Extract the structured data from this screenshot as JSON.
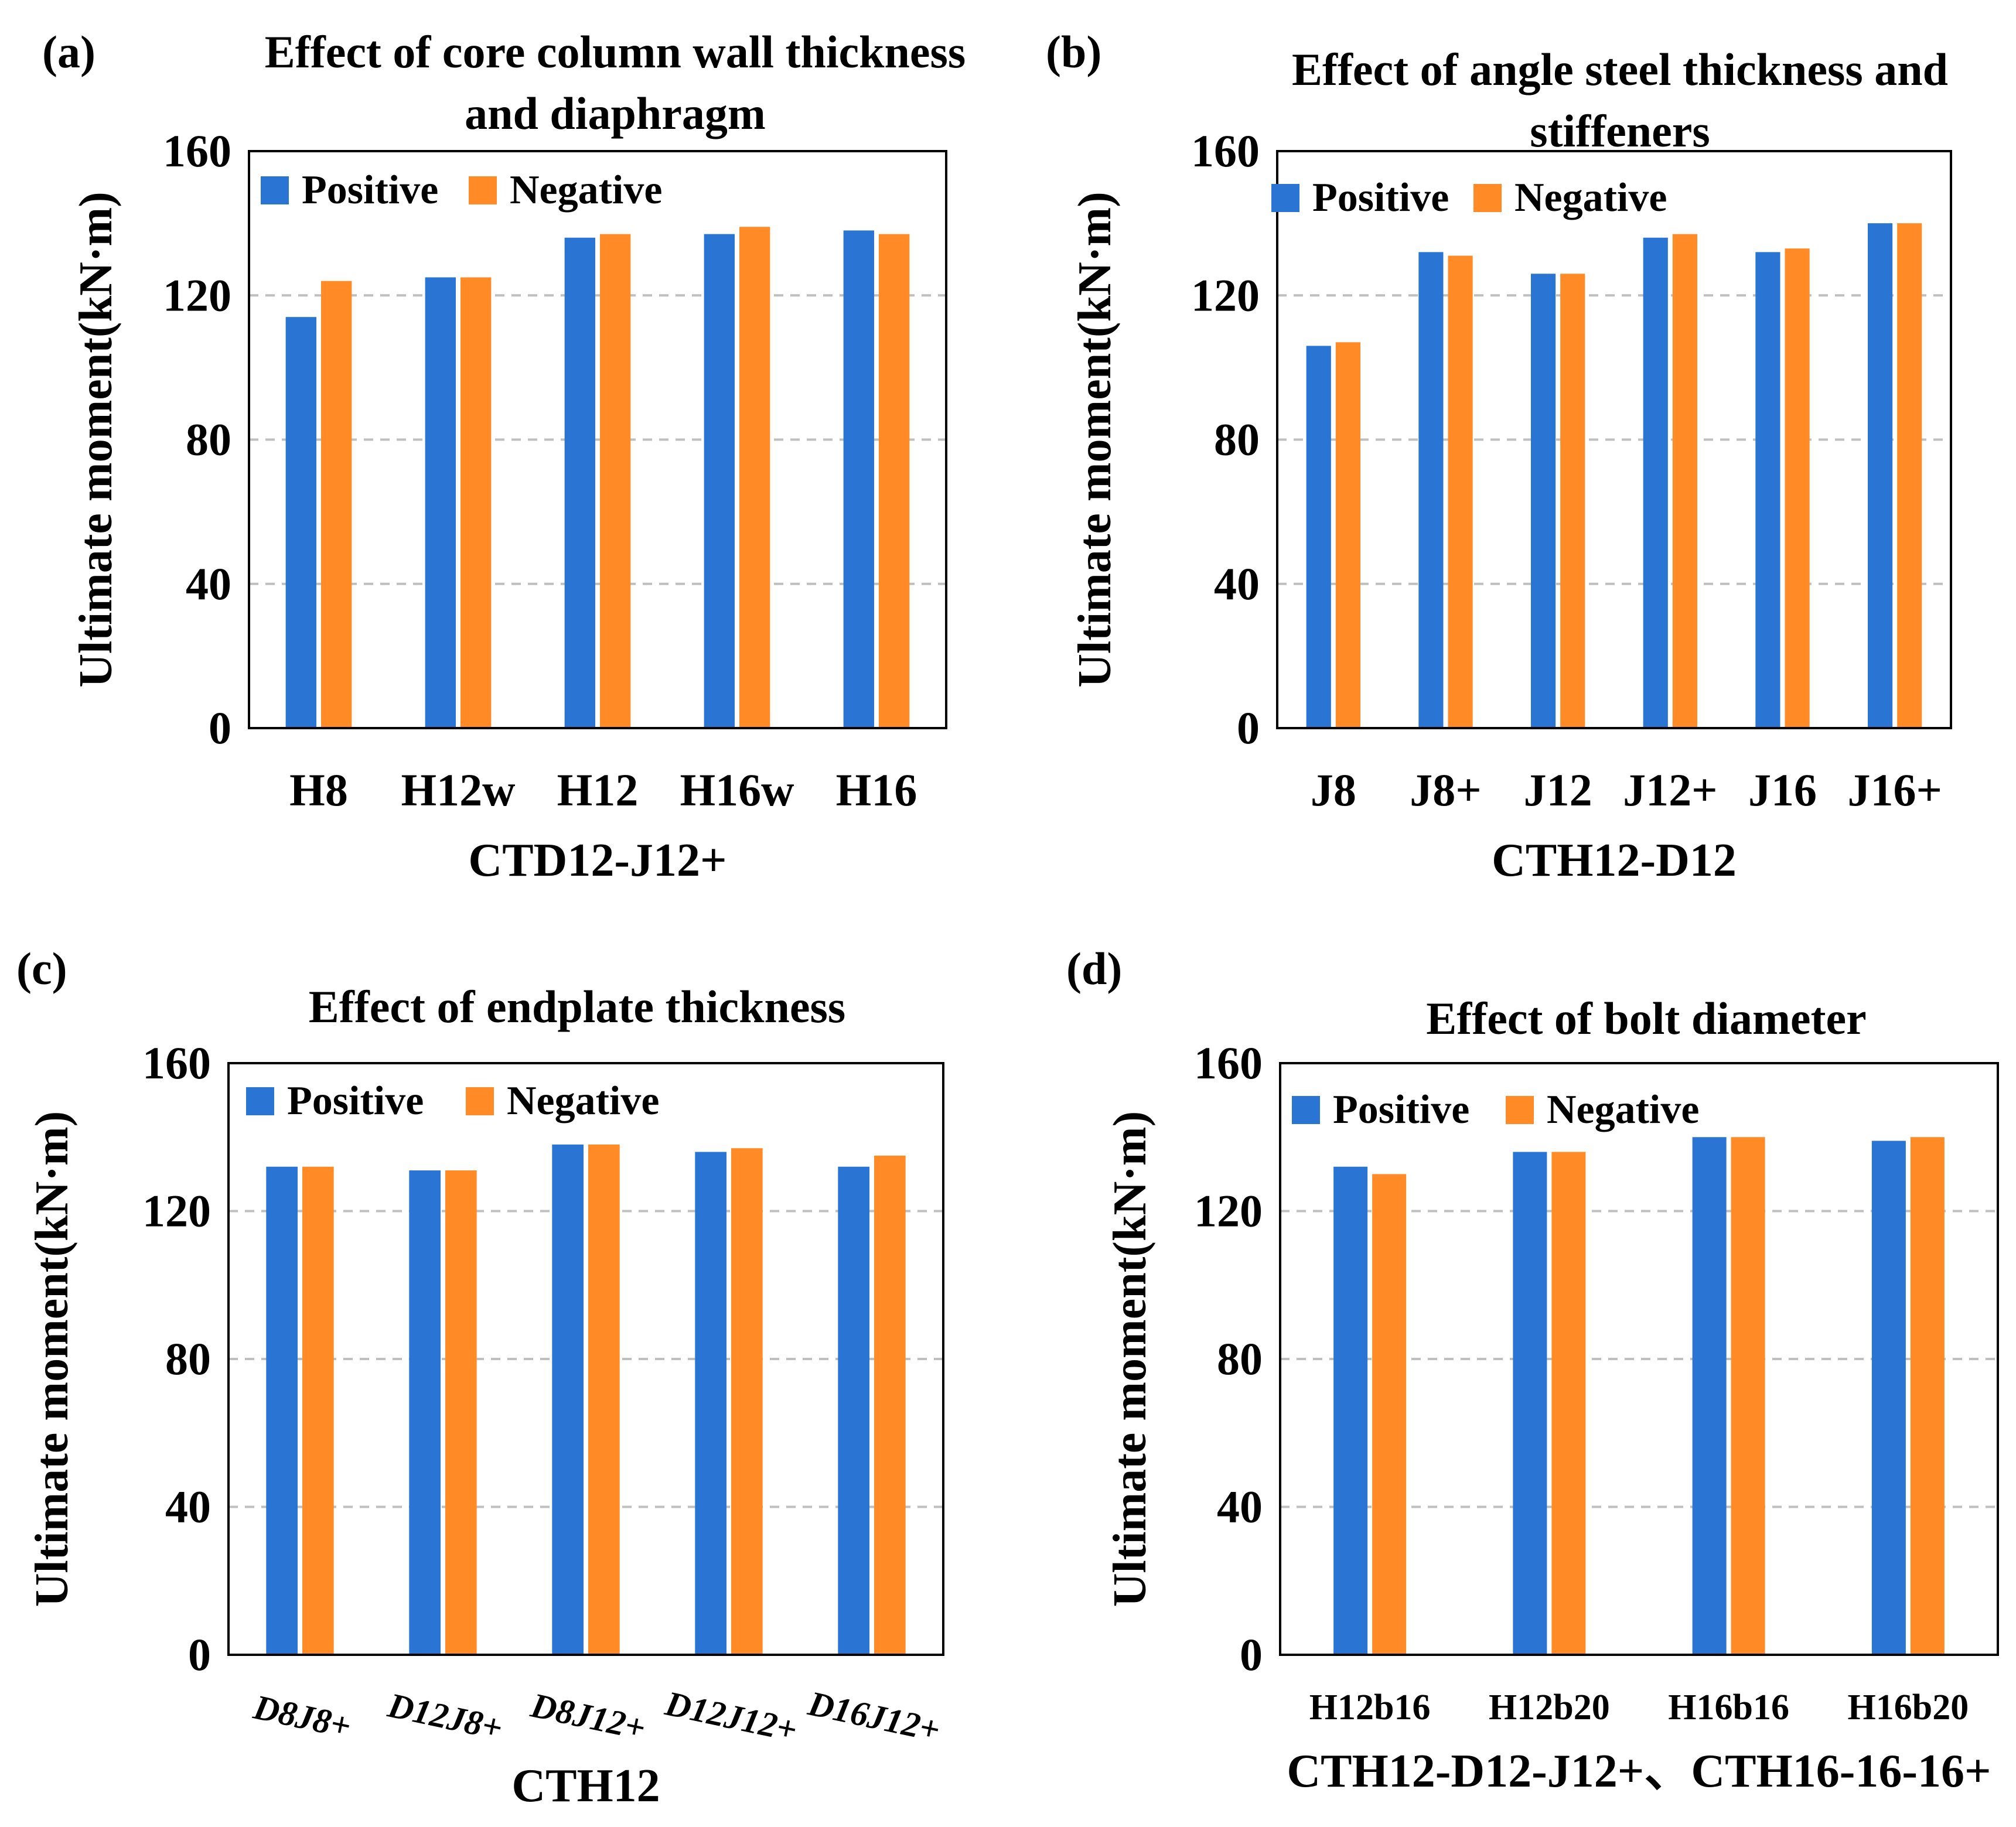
{
  "colors": {
    "positive": "#2A75D3",
    "negative": "#FF8A26",
    "grid": "#BFBFBF",
    "axis": "#000000"
  },
  "chart_data": [
    {
      "type": "bar",
      "panel_label": "(a)",
      "title_lines": [
        "Effect of core column wall thickness",
        "and diaphragm"
      ],
      "categories": [
        "H8",
        "H12w",
        "H12",
        "H16w",
        "H16"
      ],
      "series": [
        {
          "name": "Positive",
          "values": [
            114,
            125,
            136,
            137,
            138
          ]
        },
        {
          "name": "Negative",
          "values": [
            124,
            125,
            137,
            139,
            137
          ]
        }
      ],
      "xlabel": "CTD12-J12+",
      "ylabel": "Ultimate moment(kN·m)",
      "ylim": [
        0,
        160
      ],
      "yticks": [
        "0",
        "40",
        "80",
        "120",
        "160"
      ],
      "grid": "horizontal dashed",
      "legend": "top-left"
    },
    {
      "type": "bar",
      "panel_label": "(b)",
      "title_lines": [
        "Effect of angle steel thickness and",
        "stiffeners"
      ],
      "categories": [
        "J8",
        "J8+",
        "J12",
        "J12+",
        "J16",
        "J16+"
      ],
      "series": [
        {
          "name": "Positive",
          "values": [
            106,
            132,
            126,
            136,
            132,
            140
          ]
        },
        {
          "name": "Negative",
          "values": [
            107,
            131,
            126,
            137,
            133,
            140
          ]
        }
      ],
      "xlabel": "CTH12-D12",
      "ylabel": "Ultimate moment(kN·m)",
      "ylim": [
        0,
        160
      ],
      "yticks": [
        "0",
        "40",
        "80",
        "120",
        "160"
      ],
      "grid": "horizontal dashed",
      "legend": "top-left"
    },
    {
      "type": "bar",
      "panel_label": "(c)",
      "title_lines": [
        "Effect of endplate thickness"
      ],
      "categories": [
        "D8J8+",
        "D12J8+",
        "D8J12+",
        "D12J12+",
        "D16J12+"
      ],
      "series": [
        {
          "name": "Positive",
          "values": [
            132,
            131,
            138,
            136,
            132
          ]
        },
        {
          "name": "Negative",
          "values": [
            132,
            131,
            138,
            137,
            135
          ]
        }
      ],
      "xlabel": "CTH12",
      "ylabel": "Ultimate moment(kN·m)",
      "ylim": [
        0,
        160
      ],
      "yticks": [
        "0",
        "40",
        "80",
        "120",
        "160"
      ],
      "grid": "horizontal dashed",
      "legend": "top-left"
    },
    {
      "type": "bar",
      "panel_label": "(d)",
      "title_lines": [
        "Effect of bolt diameter"
      ],
      "categories": [
        "H12b16",
        "H12b20",
        "H16b16",
        "H16b20"
      ],
      "series": [
        {
          "name": "Positive",
          "values": [
            132,
            136,
            140,
            139
          ]
        },
        {
          "name": "Negative",
          "values": [
            130,
            136,
            140,
            140
          ]
        }
      ],
      "xlabel": "CTH12-D12-J12+、CTH16-16-16+",
      "ylabel": "Ultimate moment(kN·m)",
      "ylim": [
        0,
        160
      ],
      "yticks": [
        "0",
        "40",
        "80",
        "120",
        "160"
      ],
      "grid": "horizontal dashed",
      "legend": "top-left"
    }
  ]
}
